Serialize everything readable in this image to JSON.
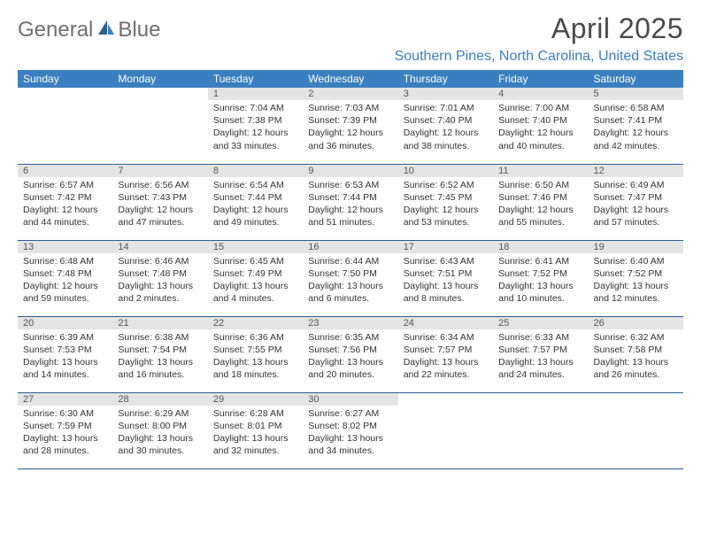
{
  "logo": {
    "word1": "General",
    "word2": "Blue"
  },
  "title": "April 2025",
  "location": "Southern Pines, North Carolina, United States",
  "colors": {
    "accent": "#3a7fbf",
    "header_bg": "#3a7fbf",
    "header_text": "#ffffff",
    "daynum_bg": "#e4e4e4",
    "row_border": "#2b5f8f",
    "text": "#333333",
    "logo_text": "#6f6f6f"
  },
  "day_names": [
    "Sunday",
    "Monday",
    "Tuesday",
    "Wednesday",
    "Thursday",
    "Friday",
    "Saturday"
  ],
  "first_weekday_index": 2,
  "days": [
    {
      "n": "1",
      "sunrise": "Sunrise: 7:04 AM",
      "sunset": "Sunset: 7:38 PM",
      "daylight": "Daylight: 12 hours and 33 minutes."
    },
    {
      "n": "2",
      "sunrise": "Sunrise: 7:03 AM",
      "sunset": "Sunset: 7:39 PM",
      "daylight": "Daylight: 12 hours and 36 minutes."
    },
    {
      "n": "3",
      "sunrise": "Sunrise: 7:01 AM",
      "sunset": "Sunset: 7:40 PM",
      "daylight": "Daylight: 12 hours and 38 minutes."
    },
    {
      "n": "4",
      "sunrise": "Sunrise: 7:00 AM",
      "sunset": "Sunset: 7:40 PM",
      "daylight": "Daylight: 12 hours and 40 minutes."
    },
    {
      "n": "5",
      "sunrise": "Sunrise: 6:58 AM",
      "sunset": "Sunset: 7:41 PM",
      "daylight": "Daylight: 12 hours and 42 minutes."
    },
    {
      "n": "6",
      "sunrise": "Sunrise: 6:57 AM",
      "sunset": "Sunset: 7:42 PM",
      "daylight": "Daylight: 12 hours and 44 minutes."
    },
    {
      "n": "7",
      "sunrise": "Sunrise: 6:56 AM",
      "sunset": "Sunset: 7:43 PM",
      "daylight": "Daylight: 12 hours and 47 minutes."
    },
    {
      "n": "8",
      "sunrise": "Sunrise: 6:54 AM",
      "sunset": "Sunset: 7:44 PM",
      "daylight": "Daylight: 12 hours and 49 minutes."
    },
    {
      "n": "9",
      "sunrise": "Sunrise: 6:53 AM",
      "sunset": "Sunset: 7:44 PM",
      "daylight": "Daylight: 12 hours and 51 minutes."
    },
    {
      "n": "10",
      "sunrise": "Sunrise: 6:52 AM",
      "sunset": "Sunset: 7:45 PM",
      "daylight": "Daylight: 12 hours and 53 minutes."
    },
    {
      "n": "11",
      "sunrise": "Sunrise: 6:50 AM",
      "sunset": "Sunset: 7:46 PM",
      "daylight": "Daylight: 12 hours and 55 minutes."
    },
    {
      "n": "12",
      "sunrise": "Sunrise: 6:49 AM",
      "sunset": "Sunset: 7:47 PM",
      "daylight": "Daylight: 12 hours and 57 minutes."
    },
    {
      "n": "13",
      "sunrise": "Sunrise: 6:48 AM",
      "sunset": "Sunset: 7:48 PM",
      "daylight": "Daylight: 12 hours and 59 minutes."
    },
    {
      "n": "14",
      "sunrise": "Sunrise: 6:46 AM",
      "sunset": "Sunset: 7:48 PM",
      "daylight": "Daylight: 13 hours and 2 minutes."
    },
    {
      "n": "15",
      "sunrise": "Sunrise: 6:45 AM",
      "sunset": "Sunset: 7:49 PM",
      "daylight": "Daylight: 13 hours and 4 minutes."
    },
    {
      "n": "16",
      "sunrise": "Sunrise: 6:44 AM",
      "sunset": "Sunset: 7:50 PM",
      "daylight": "Daylight: 13 hours and 6 minutes."
    },
    {
      "n": "17",
      "sunrise": "Sunrise: 6:43 AM",
      "sunset": "Sunset: 7:51 PM",
      "daylight": "Daylight: 13 hours and 8 minutes."
    },
    {
      "n": "18",
      "sunrise": "Sunrise: 6:41 AM",
      "sunset": "Sunset: 7:52 PM",
      "daylight": "Daylight: 13 hours and 10 minutes."
    },
    {
      "n": "19",
      "sunrise": "Sunrise: 6:40 AM",
      "sunset": "Sunset: 7:52 PM",
      "daylight": "Daylight: 13 hours and 12 minutes."
    },
    {
      "n": "20",
      "sunrise": "Sunrise: 6:39 AM",
      "sunset": "Sunset: 7:53 PM",
      "daylight": "Daylight: 13 hours and 14 minutes."
    },
    {
      "n": "21",
      "sunrise": "Sunrise: 6:38 AM",
      "sunset": "Sunset: 7:54 PM",
      "daylight": "Daylight: 13 hours and 16 minutes."
    },
    {
      "n": "22",
      "sunrise": "Sunrise: 6:36 AM",
      "sunset": "Sunset: 7:55 PM",
      "daylight": "Daylight: 13 hours and 18 minutes."
    },
    {
      "n": "23",
      "sunrise": "Sunrise: 6:35 AM",
      "sunset": "Sunset: 7:56 PM",
      "daylight": "Daylight: 13 hours and 20 minutes."
    },
    {
      "n": "24",
      "sunrise": "Sunrise: 6:34 AM",
      "sunset": "Sunset: 7:57 PM",
      "daylight": "Daylight: 13 hours and 22 minutes."
    },
    {
      "n": "25",
      "sunrise": "Sunrise: 6:33 AM",
      "sunset": "Sunset: 7:57 PM",
      "daylight": "Daylight: 13 hours and 24 minutes."
    },
    {
      "n": "26",
      "sunrise": "Sunrise: 6:32 AM",
      "sunset": "Sunset: 7:58 PM",
      "daylight": "Daylight: 13 hours and 26 minutes."
    },
    {
      "n": "27",
      "sunrise": "Sunrise: 6:30 AM",
      "sunset": "Sunset: 7:59 PM",
      "daylight": "Daylight: 13 hours and 28 minutes."
    },
    {
      "n": "28",
      "sunrise": "Sunrise: 6:29 AM",
      "sunset": "Sunset: 8:00 PM",
      "daylight": "Daylight: 13 hours and 30 minutes."
    },
    {
      "n": "29",
      "sunrise": "Sunrise: 6:28 AM",
      "sunset": "Sunset: 8:01 PM",
      "daylight": "Daylight: 13 hours and 32 minutes."
    },
    {
      "n": "30",
      "sunrise": "Sunrise: 6:27 AM",
      "sunset": "Sunset: 8:02 PM",
      "daylight": "Daylight: 13 hours and 34 minutes."
    }
  ]
}
